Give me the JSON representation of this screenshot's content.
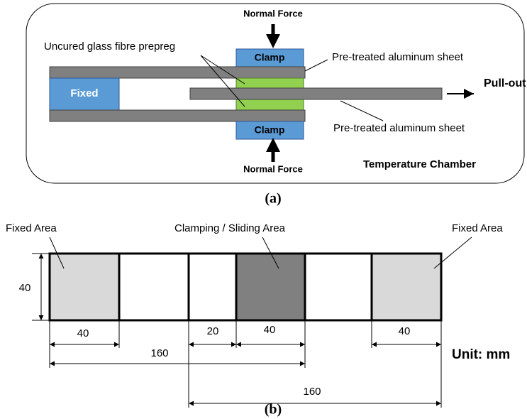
{
  "panel_a": {
    "top_force": "Normal Force",
    "bottom_force": "Normal Force",
    "top_clamp": "Clamp",
    "bottom_clamp": "Clamp",
    "fixed": "Fixed",
    "prepreg": "Uncured glass fibre prepreg",
    "sheet_top": "Pre-treated aluminum sheet",
    "sheet_bottom": "Pre-treated aluminum sheet",
    "pull_out": "Pull-out",
    "chamber": "Temperature Chamber",
    "caption": "(a)"
  },
  "panel_b": {
    "fixed_left": "Fixed Area",
    "clamping": "Clamping / Sliding Area",
    "fixed_right": "Fixed Area",
    "height": "40",
    "dim_fixed_left": "40",
    "dim_gap": "20",
    "dim_clamp": "40",
    "dim_fixed_right": "40",
    "dim_long_1": "160",
    "dim_long_2": "160",
    "unit": "Unit: mm",
    "caption": "(b)"
  }
}
